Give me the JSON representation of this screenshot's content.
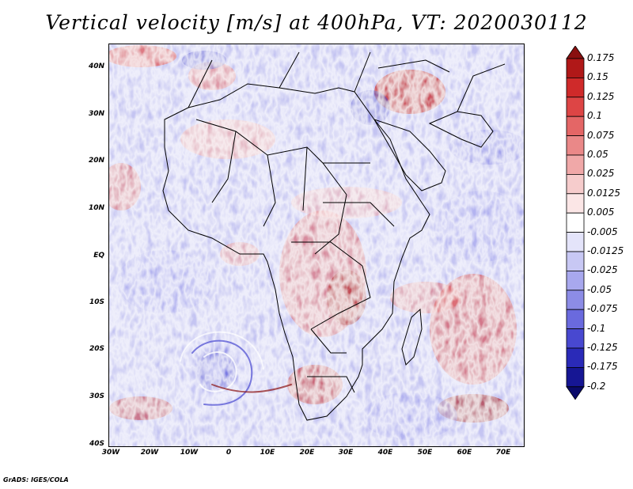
{
  "title": "Vertical velocity [m/s] at 400hPa, VT: 2020030112",
  "footer": "GrADS: IGES/COLA",
  "map": {
    "region": "Africa",
    "lat_range": [
      -40,
      45
    ],
    "lon_range": [
      -30,
      75
    ],
    "lat_ticks": [
      "40N",
      "30N",
      "20N",
      "10N",
      "EQ",
      "10S",
      "20S",
      "30S",
      "40S"
    ],
    "lon_ticks": [
      "30W",
      "20W",
      "10W",
      "0",
      "10E",
      "20E",
      "30E",
      "40E",
      "50E",
      "60E",
      "70E"
    ]
  },
  "colorbar": {
    "labels": [
      "0.175",
      "0.15",
      "0.125",
      "0.1",
      "0.075",
      "0.05",
      "0.025",
      "0.0125",
      "0.005",
      "-0.005",
      "-0.0125",
      "-0.025",
      "-0.05",
      "-0.075",
      "-0.1",
      "-0.125",
      "-0.175",
      "-0.2"
    ],
    "colors": [
      "#8a1010",
      "#b01818",
      "#cf2a2a",
      "#dd4545",
      "#e46666",
      "#ea8888",
      "#f0a8a8",
      "#f6cccc",
      "#fbe6e6",
      "#ffffff",
      "#e4e4fa",
      "#c8c8f4",
      "#a8a8ee",
      "#8c8ce6",
      "#6a6ade",
      "#4848d0",
      "#2a2ab8",
      "#161694",
      "#0a0a6a"
    ]
  }
}
